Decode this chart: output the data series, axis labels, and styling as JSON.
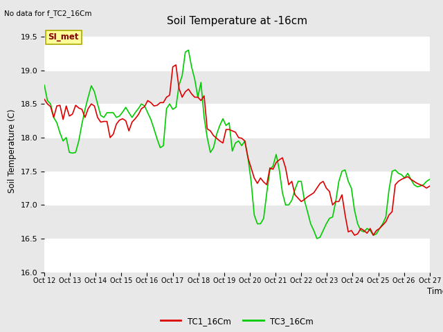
{
  "title": "Soil Temperature at -16cm",
  "top_left_note": "No data for f_TC2_16Cm",
  "ylabel": "Soil Temperature (C)",
  "xlabel": "Time",
  "ylim": [
    16.0,
    19.6
  ],
  "yticks": [
    16.0,
    16.5,
    17.0,
    17.5,
    18.0,
    18.5,
    19.0,
    19.5
  ],
  "x_tick_labels": [
    "Oct 12",
    "Oct 13",
    "Oct 14",
    "Oct 15",
    "Oct 16",
    "Oct 17",
    "Oct 18",
    "Oct 19",
    "Oct 20",
    "Oct 21",
    "Oct 22",
    "Oct 23",
    "Oct 24",
    "Oct 25",
    "Oct 26",
    "Oct 27"
  ],
  "legend_label_SI": "SI_met",
  "legend_label_TC1": "TC1_16Cm",
  "legend_label_TC3": "TC3_16Cm",
  "color_TC1": "#dd0000",
  "color_TC3": "#00cc00",
  "SI_box_facecolor": "#ffff99",
  "SI_box_edgecolor": "#aaaa00",
  "SI_text_color": "#880000",
  "fig_facecolor": "#e8e8e8",
  "plot_facecolor": "#e8e8e8",
  "band_light": "#e8e8e8",
  "band_dark": "#d8d8d8",
  "grid_color": "#ffffff",
  "TC1_y": [
    18.57,
    18.5,
    18.46,
    18.3,
    18.47,
    18.48,
    18.27,
    18.47,
    18.32,
    18.35,
    18.48,
    18.44,
    18.42,
    18.3,
    18.43,
    18.5,
    18.47,
    18.3,
    18.23,
    18.24,
    18.24,
    18.0,
    18.05,
    18.2,
    18.26,
    18.28,
    18.25,
    18.1,
    18.23,
    18.28,
    18.34,
    18.43,
    18.46,
    18.55,
    18.52,
    18.47,
    18.48,
    18.52,
    18.52,
    18.6,
    18.63,
    19.05,
    19.08,
    18.73,
    18.6,
    18.68,
    18.72,
    18.65,
    18.6,
    18.6,
    18.55,
    18.62,
    18.13,
    18.1,
    18.03,
    17.99,
    17.95,
    17.92,
    18.12,
    18.12,
    18.1,
    18.08,
    18.0,
    17.99,
    17.95,
    17.7,
    17.55,
    17.4,
    17.32,
    17.4,
    17.34,
    17.3,
    17.55,
    17.53,
    17.63,
    17.67,
    17.7,
    17.55,
    17.3,
    17.35,
    17.15,
    17.1,
    17.05,
    17.08,
    17.12,
    17.15,
    17.18,
    17.25,
    17.32,
    17.35,
    17.25,
    17.2,
    17.0,
    17.05,
    17.05,
    17.15,
    16.85,
    16.6,
    16.62,
    16.55,
    16.57,
    16.65,
    16.62,
    16.58,
    16.65,
    16.55,
    16.62,
    16.65,
    16.7,
    16.75,
    16.85,
    16.9,
    17.3,
    17.35,
    17.38,
    17.4,
    17.42,
    17.38,
    17.35,
    17.32,
    17.3,
    17.28,
    17.25,
    17.28
  ],
  "TC3_y": [
    18.78,
    18.55,
    18.5,
    18.3,
    18.22,
    18.07,
    17.95,
    18.0,
    17.78,
    17.77,
    17.78,
    17.95,
    18.2,
    18.42,
    18.6,
    18.77,
    18.68,
    18.5,
    18.33,
    18.3,
    18.37,
    18.37,
    18.37,
    18.3,
    18.32,
    18.38,
    18.45,
    18.37,
    18.3,
    18.37,
    18.43,
    18.5,
    18.47,
    18.37,
    18.27,
    18.13,
    17.98,
    17.85,
    17.88,
    18.43,
    18.5,
    18.42,
    18.45,
    18.78,
    18.92,
    19.27,
    19.3,
    19.05,
    18.87,
    18.6,
    18.82,
    18.3,
    18.0,
    17.78,
    17.85,
    18.05,
    18.18,
    18.28,
    18.18,
    18.22,
    17.8,
    17.92,
    17.95,
    17.88,
    17.95,
    17.7,
    17.35,
    16.85,
    16.72,
    16.72,
    16.8,
    17.18,
    17.52,
    17.58,
    17.75,
    17.52,
    17.18,
    17.0,
    17.0,
    17.07,
    17.23,
    17.35,
    17.35,
    17.07,
    16.9,
    16.72,
    16.62,
    16.5,
    16.52,
    16.62,
    16.72,
    16.8,
    16.82,
    17.05,
    17.35,
    17.5,
    17.52,
    17.35,
    17.25,
    16.92,
    16.72,
    16.62,
    16.6,
    16.65,
    16.62,
    16.55,
    16.57,
    16.65,
    16.72,
    16.82,
    17.22,
    17.5,
    17.52,
    17.47,
    17.45,
    17.4,
    17.47,
    17.38,
    17.3,
    17.27,
    17.28,
    17.3,
    17.35,
    17.38
  ]
}
